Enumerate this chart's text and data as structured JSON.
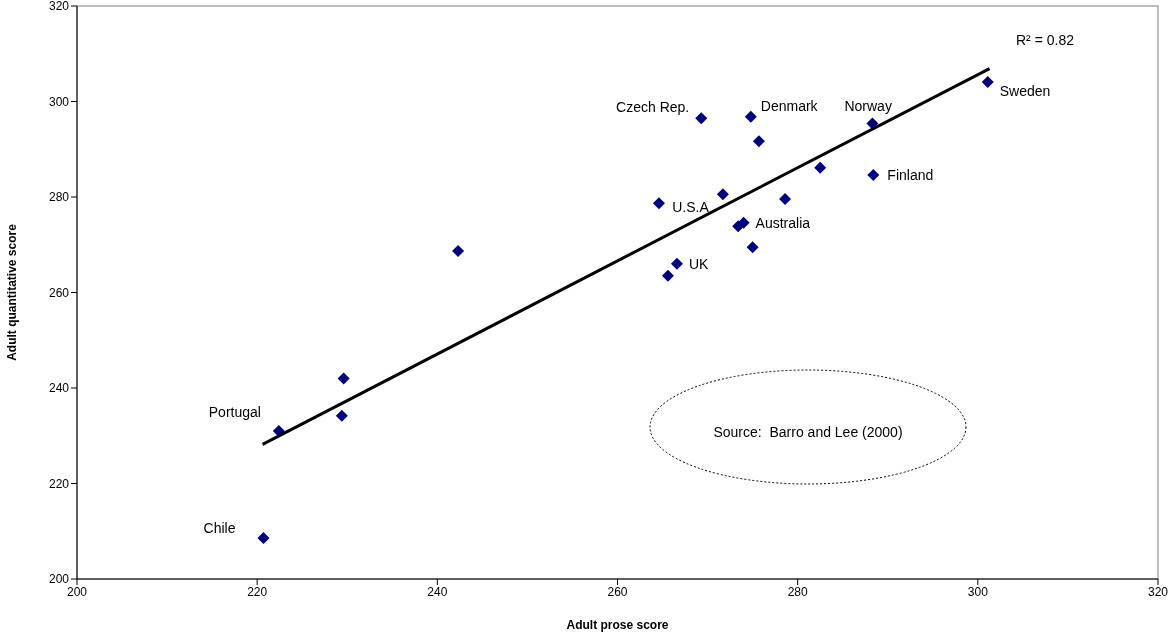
{
  "chart_data": {
    "type": "scatter",
    "xlabel": "Adult prose score",
    "ylabel": "Adult quantitative score",
    "xlim": [
      200,
      320
    ],
    "xticks": [
      200,
      220,
      240,
      260,
      280,
      300,
      320
    ],
    "ylim": [
      200,
      320
    ],
    "yticks": [
      200,
      220,
      240,
      260,
      280,
      300,
      320
    ],
    "grid": false,
    "legend": false,
    "marker": "diamond",
    "series": [
      {
        "type": "scatter",
        "color": "#000080",
        "x": [
          220.7,
          222.4,
          229.6,
          229.4,
          242.3,
          264.6,
          265.6,
          266.6,
          269.3,
          271.7,
          273.4,
          274.0,
          274.8,
          275.0,
          275.7,
          278.6,
          282.5,
          288.3,
          288.4,
          301.1
        ],
        "values": [
          208.6,
          231.0,
          242.0,
          234.2,
          268.7,
          278.7,
          263.5,
          266.0,
          296.5,
          280.6,
          273.9,
          274.6,
          296.8,
          269.5,
          291.7,
          279.6,
          286.1,
          295.4,
          284.6,
          304.1
        ]
      },
      {
        "type": "line",
        "color": "#000000",
        "marker": "none",
        "line_style": "solid",
        "x": [
          220.6,
          301.3
        ],
        "values": [
          228.2,
          306.9
        ]
      }
    ],
    "annotations": [
      {
        "text": "Czech Rep.",
        "x": 269.3,
        "y": 296.5
      },
      {
        "text": "Denmark",
        "x": 274.8,
        "y": 296.8
      },
      {
        "text": "Norway",
        "x": 288.3,
        "y": 295.4
      },
      {
        "text": "Sweden",
        "x": 301.1,
        "y": 304.1
      },
      {
        "text": "Finland",
        "x": 288.4,
        "y": 284.6
      },
      {
        "text": "Australia",
        "x": 274.0,
        "y": 274.6
      },
      {
        "text": "U.S.A",
        "x": 273.4,
        "y": 273.9
      },
      {
        "text": "UK",
        "x": 266.6,
        "y": 266.0
      },
      {
        "text": "Portugal",
        "x": 222.4,
        "y": 231.0
      },
      {
        "text": "Chile",
        "x": 220.7,
        "y": 208.6
      },
      "R² = 0.82",
      "Source:  Barro and Lee (2000)"
    ]
  }
}
